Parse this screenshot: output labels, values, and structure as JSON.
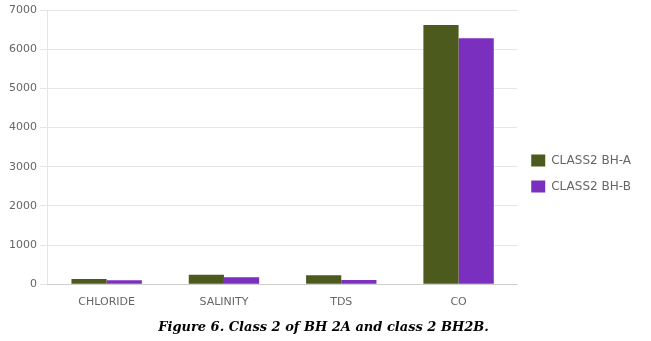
{
  "chart_data": {
    "type": "bar",
    "caption": "Figure 6. Class 2 of BH 2A and class 2 BH2B.",
    "categories": [
      "CHLORIDE",
      "SALINITY",
      "TDS",
      "CO"
    ],
    "series": [
      {
        "name": "CLASS2 BH-A",
        "color": "#4d5a1e",
        "values": [
          130,
          240,
          230,
          6620
        ]
      },
      {
        "name": "CLASS2 BH-B",
        "color": "#7b2fbe",
        "values": [
          100,
          180,
          110,
          6280
        ]
      }
    ],
    "ylim": [
      0,
      7000
    ],
    "yticks": [
      0,
      1000,
      2000,
      3000,
      4000,
      5000,
      6000,
      7000
    ],
    "grid": true,
    "legend": "right"
  }
}
